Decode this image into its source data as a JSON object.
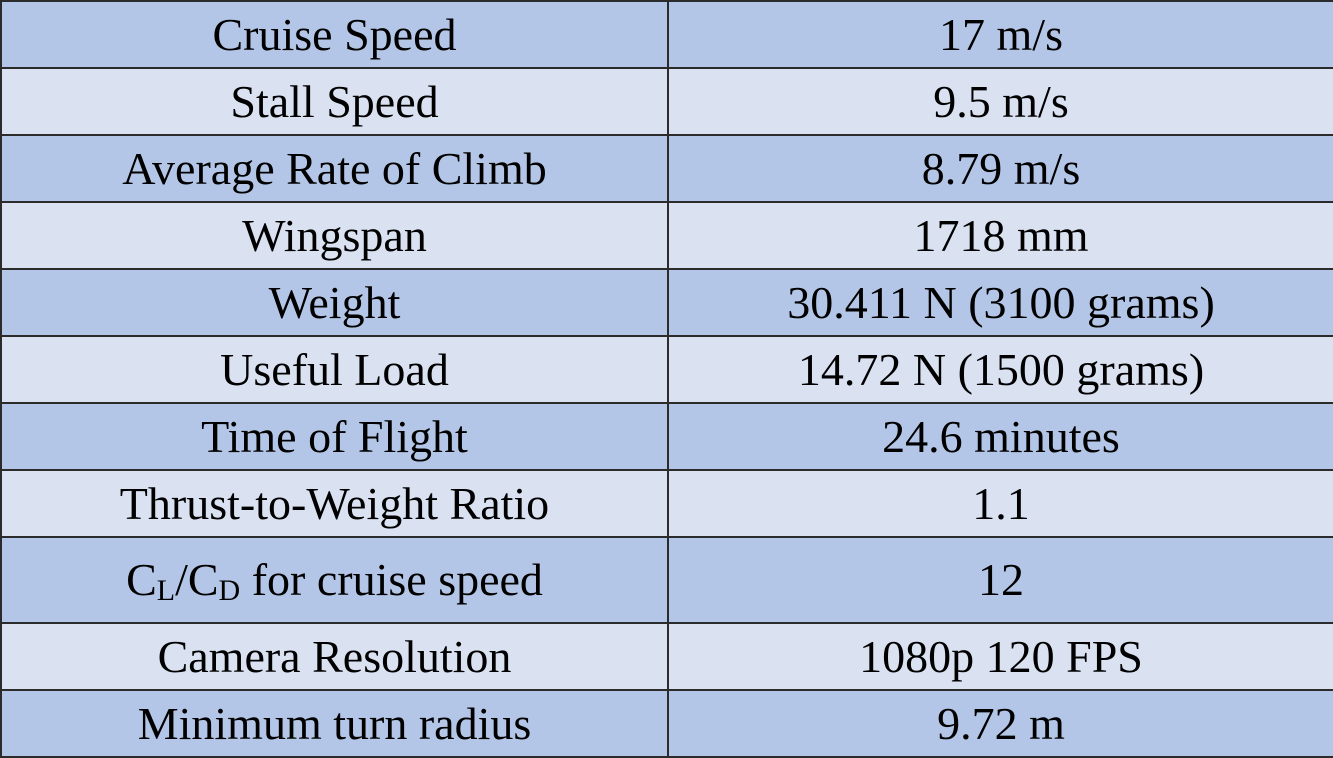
{
  "table": {
    "rows": [
      {
        "label": "Cruise Speed",
        "value": "17 m/s"
      },
      {
        "label": "Stall Speed",
        "value": "9.5 m/s"
      },
      {
        "label": "Average Rate of Climb",
        "value": "8.79 m/s"
      },
      {
        "label": "Wingspan",
        "value": "1718 mm"
      },
      {
        "label": "Weight",
        "value": "30.411 N (3100 grams)"
      },
      {
        "label": "Useful Load",
        "value": "14.72 N (1500 grams)"
      },
      {
        "label": "Time of Flight",
        "value": "24.6 minutes"
      },
      {
        "label": "Thrust-to-Weight Ratio",
        "value": "1.1"
      },
      {
        "label_parts": {
          "cl_main": "C",
          "cl_sub": "L",
          "slash": "/",
          "cd_main": "C",
          "cd_sub": "D",
          "rest": " for cruise speed"
        },
        "value": "12"
      },
      {
        "label": "Camera Resolution",
        "value": "1080p 120 FPS"
      },
      {
        "label": "Minimum turn radius",
        "value": "9.72 m"
      }
    ]
  },
  "colors": {
    "row_dark": "#b4c6e7",
    "row_light": "#dae2f2",
    "border": "#2b2b2b",
    "text": "#000000"
  }
}
